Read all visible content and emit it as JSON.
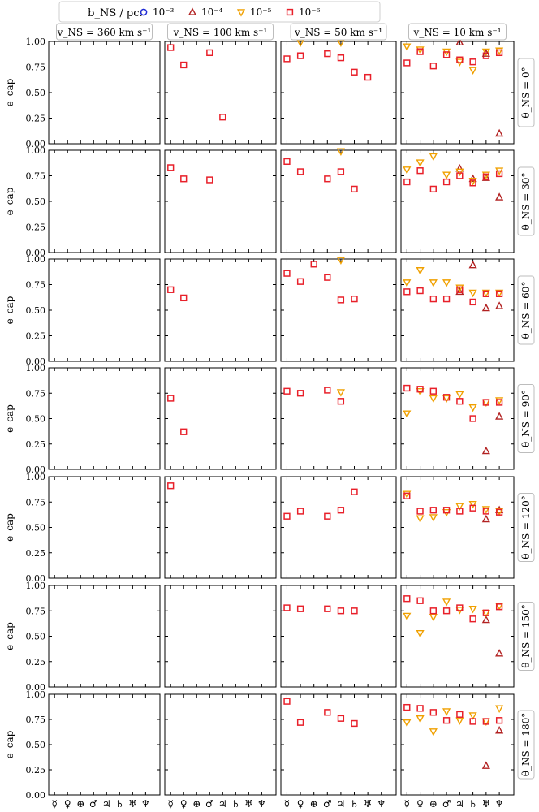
{
  "chart_data": {
    "type": "scatter",
    "title": "",
    "ylabel": "e_cap",
    "ylim": [
      0,
      1
    ],
    "yticks": [
      "0.00",
      "0.25",
      "0.50",
      "0.75",
      "1.00"
    ],
    "planets": [
      "☿",
      "♀",
      "⊕",
      "♂",
      "♃",
      "♄",
      "♅",
      "♆"
    ],
    "legend": {
      "title": "b_NS / pc:",
      "entries": [
        {
          "label": "10⁻³",
          "marker": "circle",
          "color": "#1f2bd6"
        },
        {
          "label": "10⁻⁴",
          "marker": "triangle-up",
          "color": "#b22222"
        },
        {
          "label": "10⁻⁵",
          "marker": "triangle-down",
          "color": "#f0a000"
        },
        {
          "label": "10⁻⁶",
          "marker": "square",
          "color": "#e8202a"
        }
      ]
    },
    "column_labels": [
      "v_NS = 360 km s⁻¹",
      "v_NS = 100 km s⁻¹",
      "v_NS = 50 km s⁻¹",
      "v_NS = 10 km s⁻¹"
    ],
    "row_labels": [
      "θ_NS = 0°",
      "θ_NS = 30°",
      "θ_NS = 60°",
      "θ_NS = 90°",
      "θ_NS = 120°",
      "θ_NS = 150°",
      "θ_NS = 180°"
    ],
    "panels": [
      [
        {
          "points": []
        },
        {
          "points": [
            [
              0,
              0.94,
              "6"
            ],
            [
              1,
              0.77,
              "6"
            ],
            [
              3,
              0.89,
              "6"
            ],
            [
              4,
              0.26,
              "6"
            ]
          ]
        },
        {
          "points": [
            [
              0,
              0.83,
              "6"
            ],
            [
              1,
              0.86,
              "6"
            ],
            [
              1,
              0.99,
              "5"
            ],
            [
              3,
              0.88,
              "6"
            ],
            [
              4,
              0.84,
              "6"
            ],
            [
              4,
              0.99,
              "5"
            ],
            [
              5,
              0.7,
              "6"
            ],
            [
              6,
              0.65,
              "6"
            ]
          ]
        },
        {
          "points": [
            [
              0,
              0.95,
              "5"
            ],
            [
              0,
              0.79,
              "6"
            ],
            [
              1,
              0.92,
              "5"
            ],
            [
              1,
              0.9,
              "6"
            ],
            [
              2,
              0.76,
              "6"
            ],
            [
              3,
              0.9,
              "5"
            ],
            [
              3,
              0.87,
              "6"
            ],
            [
              4,
              0.99,
              "4"
            ],
            [
              4,
              0.8,
              "5"
            ],
            [
              4,
              0.82,
              "6"
            ],
            [
              5,
              0.72,
              "5"
            ],
            [
              5,
              0.8,
              "6"
            ],
            [
              6,
              0.9,
              "5"
            ],
            [
              6,
              0.86,
              "6"
            ],
            [
              6,
              0.88,
              "4"
            ],
            [
              7,
              0.91,
              "5"
            ],
            [
              7,
              0.89,
              "6"
            ],
            [
              7,
              0.1,
              "4"
            ]
          ]
        }
      ],
      [
        {
          "points": []
        },
        {
          "points": [
            [
              0,
              0.83,
              "6"
            ],
            [
              1,
              0.72,
              "6"
            ],
            [
              3,
              0.71,
              "6"
            ]
          ]
        },
        {
          "points": [
            [
              0,
              0.89,
              "6"
            ],
            [
              1,
              0.79,
              "6"
            ],
            [
              3,
              0.72,
              "6"
            ],
            [
              4,
              0.79,
              "6"
            ],
            [
              4,
              0.99,
              "5"
            ],
            [
              5,
              0.62,
              "6"
            ]
          ]
        },
        {
          "points": [
            [
              0,
              0.81,
              "5"
            ],
            [
              0,
              0.69,
              "6"
            ],
            [
              1,
              0.88,
              "5"
            ],
            [
              1,
              0.8,
              "6"
            ],
            [
              2,
              0.94,
              "5"
            ],
            [
              2,
              0.62,
              "6"
            ],
            [
              3,
              0.76,
              "5"
            ],
            [
              3,
              0.69,
              "6"
            ],
            [
              4,
              0.82,
              "4"
            ],
            [
              4,
              0.79,
              "5"
            ],
            [
              4,
              0.75,
              "6"
            ],
            [
              5,
              0.72,
              "4"
            ],
            [
              5,
              0.7,
              "5"
            ],
            [
              5,
              0.68,
              "6"
            ],
            [
              6,
              0.73,
              "4"
            ],
            [
              6,
              0.76,
              "5"
            ],
            [
              6,
              0.74,
              "6"
            ],
            [
              7,
              0.8,
              "5"
            ],
            [
              7,
              0.77,
              "6"
            ],
            [
              7,
              0.54,
              "4"
            ]
          ]
        }
      ],
      [
        {
          "points": []
        },
        {
          "points": [
            [
              0,
              0.7,
              "6"
            ],
            [
              1,
              0.62,
              "6"
            ]
          ]
        },
        {
          "points": [
            [
              0,
              0.86,
              "6"
            ],
            [
              1,
              0.78,
              "6"
            ],
            [
              2,
              0.95,
              "6"
            ],
            [
              3,
              0.82,
              "6"
            ],
            [
              4,
              0.6,
              "6"
            ],
            [
              4,
              0.99,
              "5"
            ],
            [
              5,
              0.61,
              "6"
            ]
          ]
        },
        {
          "points": [
            [
              0,
              0.77,
              "5"
            ],
            [
              0,
              0.68,
              "6"
            ],
            [
              1,
              0.89,
              "5"
            ],
            [
              1,
              0.69,
              "6"
            ],
            [
              2,
              0.77,
              "5"
            ],
            [
              2,
              0.61,
              "6"
            ],
            [
              3,
              0.77,
              "5"
            ],
            [
              3,
              0.61,
              "6"
            ],
            [
              4,
              0.68,
              "4"
            ],
            [
              4,
              0.72,
              "5"
            ],
            [
              4,
              0.7,
              "6"
            ],
            [
              5,
              0.94,
              "4"
            ],
            [
              5,
              0.67,
              "5"
            ],
            [
              5,
              0.58,
              "6"
            ],
            [
              6,
              0.52,
              "4"
            ],
            [
              6,
              0.67,
              "5"
            ],
            [
              6,
              0.66,
              "6"
            ],
            [
              7,
              0.54,
              "4"
            ],
            [
              7,
              0.67,
              "5"
            ],
            [
              7,
              0.66,
              "6"
            ]
          ]
        }
      ],
      [
        {
          "points": []
        },
        {
          "points": [
            [
              0,
              0.7,
              "6"
            ],
            [
              1,
              0.37,
              "6"
            ]
          ]
        },
        {
          "points": [
            [
              0,
              0.77,
              "6"
            ],
            [
              1,
              0.75,
              "6"
            ],
            [
              3,
              0.78,
              "6"
            ],
            [
              4,
              0.76,
              "5"
            ],
            [
              4,
              0.67,
              "6"
            ]
          ]
        },
        {
          "points": [
            [
              0,
              0.55,
              "5"
            ],
            [
              0,
              0.8,
              "6"
            ],
            [
              1,
              0.77,
              "5"
            ],
            [
              1,
              0.79,
              "6"
            ],
            [
              2,
              0.7,
              "5"
            ],
            [
              2,
              0.77,
              "6"
            ],
            [
              3,
              0.7,
              "5"
            ],
            [
              3,
              0.71,
              "6"
            ],
            [
              4,
              0.74,
              "5"
            ],
            [
              4,
              0.67,
              "6"
            ],
            [
              5,
              0.61,
              "5"
            ],
            [
              5,
              0.5,
              "6"
            ],
            [
              6,
              0.18,
              "4"
            ],
            [
              6,
              0.66,
              "5"
            ],
            [
              6,
              0.66,
              "6"
            ],
            [
              7,
              0.52,
              "4"
            ],
            [
              7,
              0.68,
              "5"
            ],
            [
              7,
              0.66,
              "6"
            ]
          ]
        }
      ],
      [
        {
          "points": []
        },
        {
          "points": [
            [
              0,
              0.91,
              "6"
            ]
          ]
        },
        {
          "points": [
            [
              0,
              0.61,
              "6"
            ],
            [
              1,
              0.66,
              "6"
            ],
            [
              3,
              0.61,
              "6"
            ],
            [
              4,
              0.67,
              "6"
            ],
            [
              5,
              0.85,
              "6"
            ]
          ]
        },
        {
          "points": [
            [
              0,
              0.83,
              "5"
            ],
            [
              0,
              0.81,
              "6"
            ],
            [
              1,
              0.59,
              "5"
            ],
            [
              1,
              0.66,
              "6"
            ],
            [
              2,
              0.6,
              "5"
            ],
            [
              2,
              0.67,
              "6"
            ],
            [
              3,
              0.65,
              "5"
            ],
            [
              3,
              0.67,
              "6"
            ],
            [
              4,
              0.71,
              "5"
            ],
            [
              4,
              0.66,
              "6"
            ],
            [
              5,
              0.73,
              "5"
            ],
            [
              5,
              0.69,
              "6"
            ],
            [
              6,
              0.58,
              "4"
            ],
            [
              6,
              0.68,
              "5"
            ],
            [
              6,
              0.66,
              "6"
            ],
            [
              7,
              0.67,
              "4"
            ],
            [
              7,
              0.66,
              "5"
            ],
            [
              7,
              0.65,
              "6"
            ]
          ]
        }
      ],
      [
        {
          "points": []
        },
        {
          "points": []
        },
        {
          "points": [
            [
              0,
              0.78,
              "6"
            ],
            [
              1,
              0.77,
              "6"
            ],
            [
              3,
              0.77,
              "6"
            ],
            [
              4,
              0.75,
              "6"
            ],
            [
              5,
              0.75,
              "6"
            ]
          ]
        },
        {
          "points": [
            [
              0,
              0.7,
              "5"
            ],
            [
              0,
              0.87,
              "6"
            ],
            [
              1,
              0.53,
              "5"
            ],
            [
              1,
              0.85,
              "6"
            ],
            [
              2,
              0.69,
              "5"
            ],
            [
              2,
              0.75,
              "6"
            ],
            [
              3,
              0.84,
              "5"
            ],
            [
              3,
              0.75,
              "6"
            ],
            [
              4,
              0.76,
              "5"
            ],
            [
              4,
              0.78,
              "6"
            ],
            [
              5,
              0.77,
              "5"
            ],
            [
              5,
              0.67,
              "6"
            ],
            [
              6,
              0.66,
              "4"
            ],
            [
              6,
              0.73,
              "5"
            ],
            [
              6,
              0.73,
              "6"
            ],
            [
              7,
              0.33,
              "4"
            ],
            [
              7,
              0.8,
              "5"
            ],
            [
              7,
              0.79,
              "6"
            ]
          ]
        }
      ],
      [
        {
          "points": []
        },
        {
          "points": []
        },
        {
          "points": [
            [
              0,
              0.93,
              "6"
            ],
            [
              1,
              0.72,
              "6"
            ],
            [
              3,
              0.82,
              "6"
            ],
            [
              4,
              0.76,
              "6"
            ],
            [
              5,
              0.71,
              "6"
            ]
          ]
        },
        {
          "points": [
            [
              0,
              0.72,
              "5"
            ],
            [
              0,
              0.87,
              "6"
            ],
            [
              1,
              0.76,
              "5"
            ],
            [
              1,
              0.86,
              "6"
            ],
            [
              2,
              0.63,
              "5"
            ],
            [
              2,
              0.82,
              "6"
            ],
            [
              3,
              0.83,
              "5"
            ],
            [
              3,
              0.74,
              "6"
            ],
            [
              4,
              0.74,
              "5"
            ],
            [
              4,
              0.8,
              "6"
            ],
            [
              5,
              0.79,
              "5"
            ],
            [
              5,
              0.73,
              "6"
            ],
            [
              6,
              0.29,
              "4"
            ],
            [
              6,
              0.73,
              "5"
            ],
            [
              6,
              0.73,
              "6"
            ],
            [
              7,
              0.64,
              "4"
            ],
            [
              7,
              0.86,
              "5"
            ],
            [
              7,
              0.74,
              "6"
            ]
          ]
        }
      ]
    ]
  }
}
